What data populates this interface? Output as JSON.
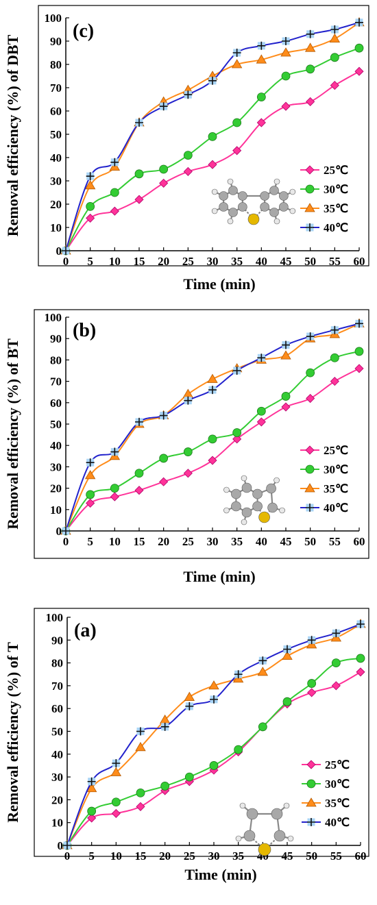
{
  "chart_data": [
    {
      "type": "line",
      "panel_label": "(c)",
      "xlabel": "Time (min)",
      "ylabel": "Removal efficiency (%) of DBT",
      "x": [
        0,
        5,
        10,
        15,
        20,
        25,
        30,
        35,
        40,
        45,
        50,
        55,
        60
      ],
      "xlim": [
        0,
        60
      ],
      "ylim": [
        0,
        100
      ],
      "yticks": [
        0,
        10,
        20,
        30,
        40,
        50,
        60,
        70,
        80,
        90,
        100
      ],
      "grid": false,
      "legend_position": "bottom-right",
      "inset": "dibenzothiophene molecule model",
      "series": [
        {
          "name": "25℃",
          "marker": "diamond",
          "color": "#ff3399",
          "values": [
            0,
            14,
            17,
            22,
            29,
            34,
            37,
            43,
            55,
            62,
            64,
            71,
            77
          ]
        },
        {
          "name": "30℃",
          "marker": "circle",
          "color": "#33cc33",
          "values": [
            0,
            19,
            25,
            33,
            35,
            41,
            49,
            55,
            66,
            75,
            78,
            83,
            87
          ]
        },
        {
          "name": "35℃",
          "marker": "triangle",
          "color": "#ff8c1a",
          "values": [
            0,
            28,
            36,
            55,
            64,
            69,
            75,
            80,
            82,
            85,
            87,
            91,
            98
          ]
        },
        {
          "name": "40℃",
          "marker": "plus-square",
          "color": "#2222cc",
          "values": [
            0,
            32,
            38,
            55,
            62,
            67,
            73,
            85,
            88,
            90,
            93,
            95,
            98
          ]
        }
      ]
    },
    {
      "type": "line",
      "panel_label": "(b)",
      "xlabel": "Time (min)",
      "ylabel": "Removal efficiency (%) of BT",
      "x": [
        0,
        5,
        10,
        15,
        20,
        25,
        30,
        35,
        40,
        45,
        50,
        55,
        60
      ],
      "xlim": [
        0,
        60
      ],
      "ylim": [
        0,
        100
      ],
      "yticks": [
        0,
        10,
        20,
        30,
        40,
        50,
        60,
        70,
        80,
        90,
        100
      ],
      "grid": false,
      "legend_position": "bottom-right",
      "inset": "benzothiophene molecule model",
      "series": [
        {
          "name": "25℃",
          "marker": "diamond",
          "color": "#ff3399",
          "values": [
            0,
            13,
            16,
            19,
            23,
            27,
            33,
            43,
            51,
            58,
            62,
            70,
            76
          ]
        },
        {
          "name": "30℃",
          "marker": "circle",
          "color": "#33cc33",
          "values": [
            0,
            17,
            20,
            27,
            34,
            37,
            43,
            46,
            56,
            63,
            74,
            81,
            84
          ]
        },
        {
          "name": "35℃",
          "marker": "triangle",
          "color": "#ff8c1a",
          "values": [
            0,
            26,
            35,
            50,
            54,
            64,
            71,
            76,
            80,
            82,
            90,
            92,
            97
          ]
        },
        {
          "name": "40℃",
          "marker": "plus-square",
          "color": "#2222cc",
          "values": [
            0,
            32,
            37,
            51,
            54,
            61,
            66,
            75,
            81,
            87,
            91,
            94,
            97
          ]
        }
      ]
    },
    {
      "type": "line",
      "panel_label": "(a)",
      "xlabel": "Time (min)",
      "ylabel": "Removal efficiency (%) of T",
      "x": [
        0,
        5,
        10,
        15,
        20,
        25,
        30,
        35,
        40,
        45,
        50,
        55,
        60
      ],
      "xlim": [
        0,
        60
      ],
      "ylim": [
        0,
        100
      ],
      "yticks": [
        0,
        10,
        20,
        30,
        40,
        50,
        60,
        70,
        80,
        90,
        100
      ],
      "grid": false,
      "legend_position": "bottom-right",
      "inset": "thiophene molecule model",
      "series": [
        {
          "name": "25℃",
          "marker": "diamond",
          "color": "#ff3399",
          "values": [
            0,
            12,
            14,
            17,
            24,
            28,
            33,
            41,
            52,
            62,
            67,
            70,
            76
          ]
        },
        {
          "name": "30℃",
          "marker": "circle",
          "color": "#33cc33",
          "values": [
            0,
            15,
            19,
            23,
            26,
            30,
            35,
            42,
            52,
            63,
            71,
            80,
            82
          ]
        },
        {
          "name": "35℃",
          "marker": "triangle",
          "color": "#ff8c1a",
          "values": [
            0,
            25,
            32,
            43,
            55,
            65,
            70,
            73,
            76,
            83,
            88,
            91,
            97
          ]
        },
        {
          "name": "40℃",
          "marker": "plus-square",
          "color": "#2222cc",
          "values": [
            0,
            28,
            36,
            50,
            52,
            61,
            64,
            75,
            81,
            86,
            90,
            93,
            97
          ]
        }
      ]
    }
  ]
}
